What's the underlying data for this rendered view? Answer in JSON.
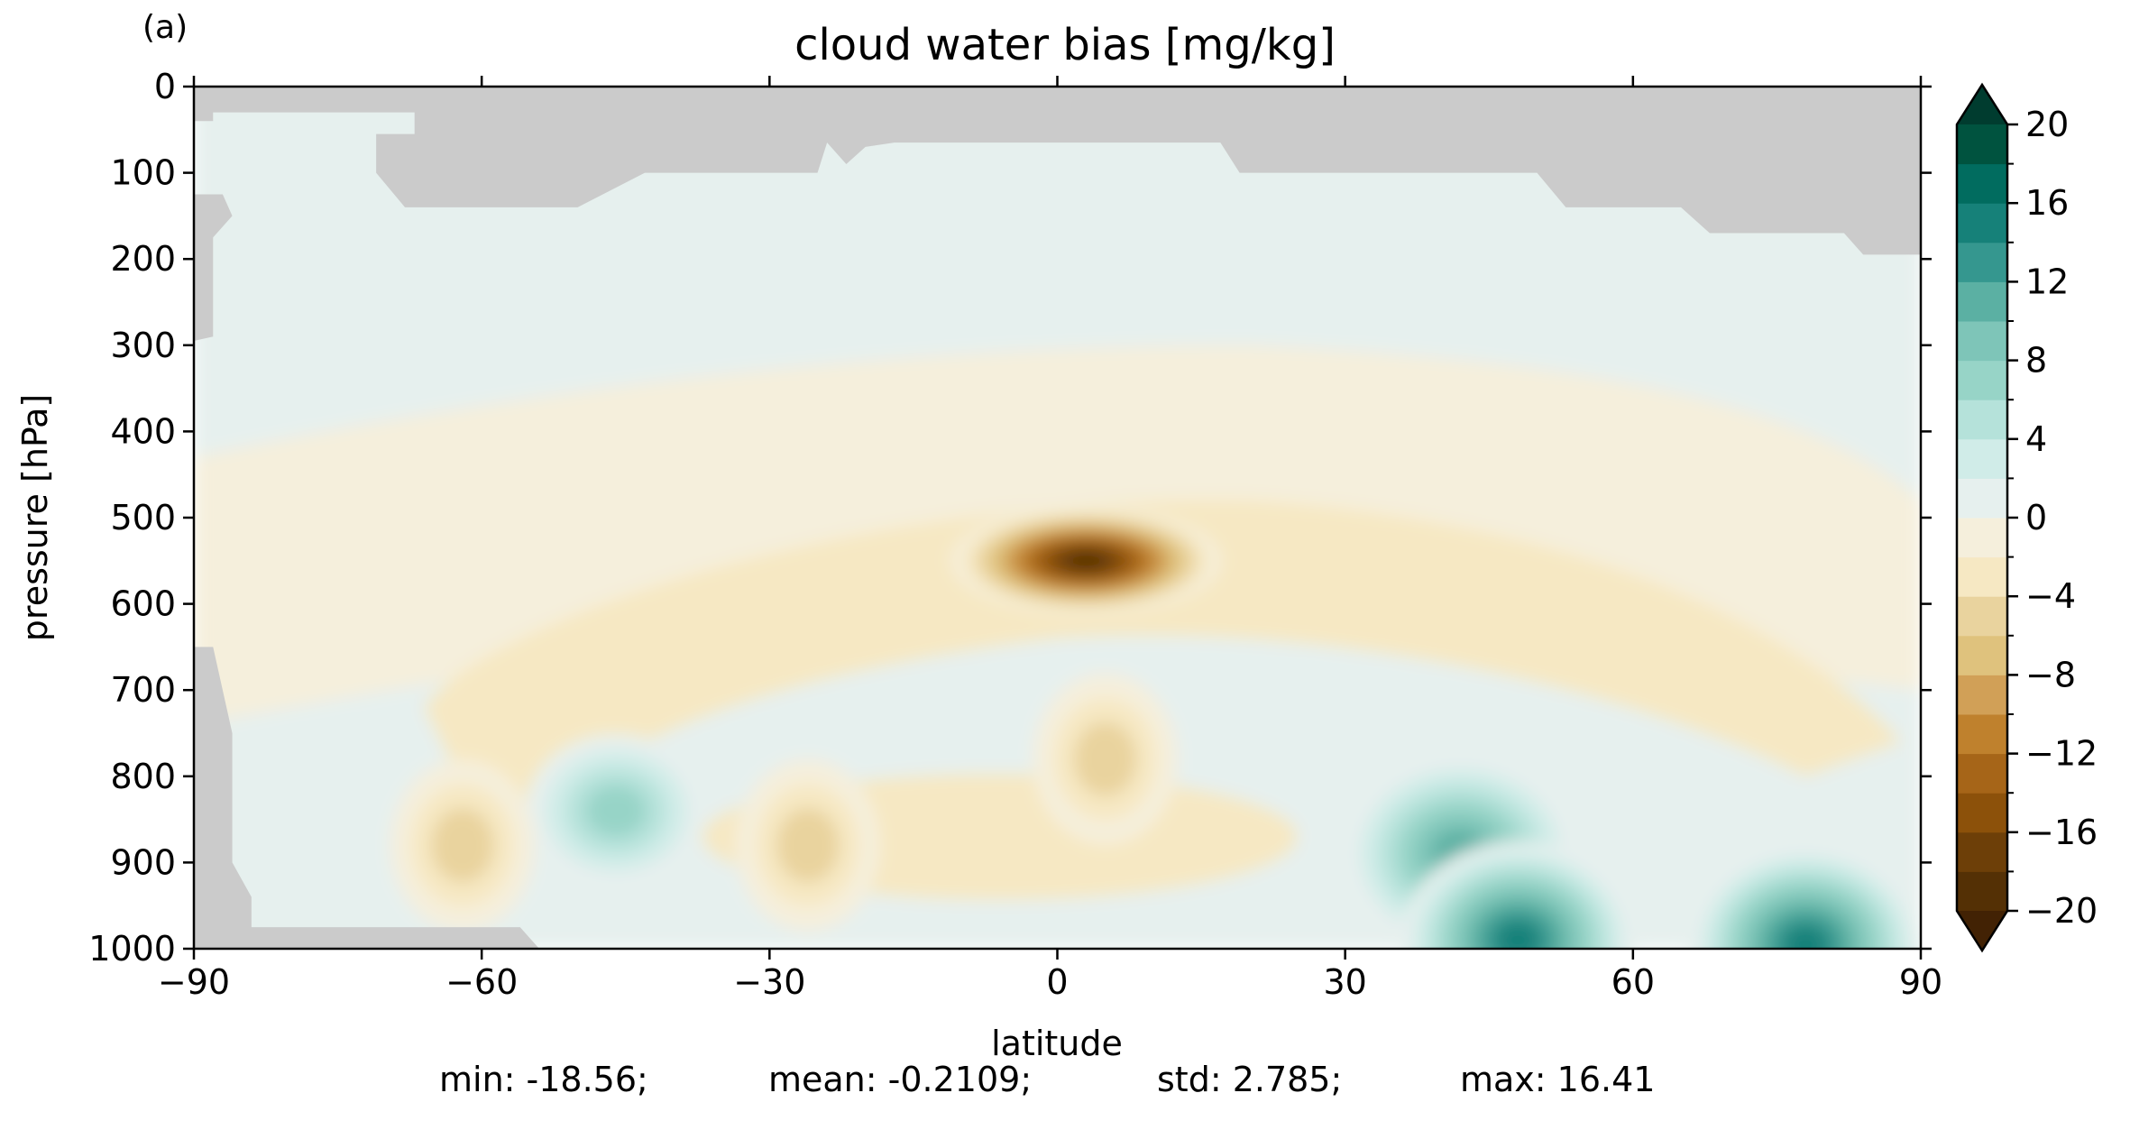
{
  "panel_label": "(a)",
  "chart_data": {
    "type": "heatmap",
    "title": "cloud water bias [mg/kg]",
    "xlabel": "latitude",
    "ylabel": "pressure [hPa]",
    "xlim": [
      -90,
      90
    ],
    "ylim": [
      1000,
      0
    ],
    "x_ticks": [
      -90,
      -60,
      -30,
      0,
      30,
      60,
      90
    ],
    "y_ticks": [
      0,
      100,
      200,
      300,
      400,
      500,
      600,
      700,
      800,
      900,
      1000
    ],
    "colorbar": {
      "min": -20,
      "max": 20,
      "step": 2,
      "ticks": [
        -20,
        -16,
        -12,
        -8,
        -4,
        0,
        4,
        8,
        12,
        16,
        20
      ],
      "extend": "both",
      "colors": [
        "#543005",
        "#6d3f08",
        "#8c510a",
        "#a66518",
        "#bf812d",
        "#d1a057",
        "#dfc27d",
        "#e9d39e",
        "#f6e8c3",
        "#f5efdc",
        "#e6f0ee",
        "#d0ece8",
        "#b5e2da",
        "#97d4c7",
        "#7ec5b8",
        "#5bb0a3",
        "#35978f",
        "#168179",
        "#016c5f",
        "#00533f"
      ],
      "under_color": "#422204",
      "over_color": "#003c2f"
    },
    "missing_color": "#cbcbcb",
    "features": [
      {
        "lat": 3,
        "p": 550,
        "value": -18.5
      },
      {
        "lat": -46,
        "p": 840,
        "value": 8
      },
      {
        "lat": 42,
        "p": 890,
        "value": 12
      },
      {
        "lat": 48,
        "p": 990,
        "value": 16
      },
      {
        "lat": 78,
        "p": 995,
        "value": 15
      },
      {
        "lat": -62,
        "p": 880,
        "value": -6
      },
      {
        "lat": 5,
        "p": 780,
        "value": -5
      },
      {
        "lat": -26,
        "p": 880,
        "value": -5
      }
    ],
    "stats": {
      "min": "-18.56",
      "mean": "-0.2109",
      "std": "2.785",
      "max": "16.41"
    }
  },
  "stats_text": {
    "min": "min: -18.56;",
    "mean": "mean: -0.2109;",
    "std": "std: 2.785;",
    "max": "max: 16.41"
  }
}
